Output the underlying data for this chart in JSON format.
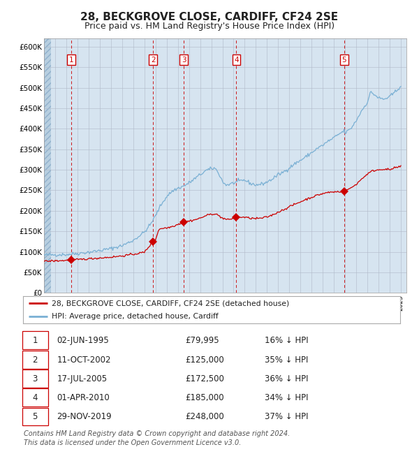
{
  "title": "28, BECKGROVE CLOSE, CARDIFF, CF24 2SE",
  "subtitle": "Price paid vs. HM Land Registry's House Price Index (HPI)",
  "title_fontsize": 11,
  "subtitle_fontsize": 9,
  "plot_bg_color": "#d6e4f0",
  "ylim": [
    0,
    620000
  ],
  "yticks": [
    0,
    50000,
    100000,
    150000,
    200000,
    250000,
    300000,
    350000,
    400000,
    450000,
    500000,
    550000,
    600000
  ],
  "ytick_labels": [
    "£0",
    "£50K",
    "£100K",
    "£150K",
    "£200K",
    "£250K",
    "£300K",
    "£350K",
    "£400K",
    "£450K",
    "£500K",
    "£550K",
    "£600K"
  ],
  "xlim_start": 1993.0,
  "xlim_end": 2025.5,
  "hpi_line_color": "#7ab0d4",
  "price_line_color": "#cc0000",
  "marker_color": "#cc0000",
  "dashed_line_color": "#cc0000",
  "sale_events": [
    {
      "num": 1,
      "year": 1995.42,
      "price": 79995,
      "date": "02-JUN-1995",
      "price_str": "£79,995",
      "pct": "16% ↓ HPI"
    },
    {
      "num": 2,
      "year": 2002.78,
      "price": 125000,
      "date": "11-OCT-2002",
      "price_str": "£125,000",
      "pct": "35% ↓ HPI"
    },
    {
      "num": 3,
      "year": 2005.54,
      "price": 172500,
      "date": "17-JUL-2005",
      "price_str": "£172,500",
      "pct": "36% ↓ HPI"
    },
    {
      "num": 4,
      "year": 2010.25,
      "price": 185000,
      "date": "01-APR-2010",
      "price_str": "£185,000",
      "pct": "34% ↓ HPI"
    },
    {
      "num": 5,
      "year": 2019.92,
      "price": 248000,
      "date": "29-NOV-2019",
      "price_str": "£248,000",
      "pct": "37% ↓ HPI"
    }
  ],
  "legend_label_red": "28, BECKGROVE CLOSE, CARDIFF, CF24 2SE (detached house)",
  "legend_label_blue": "HPI: Average price, detached house, Cardiff",
  "footer": "Contains HM Land Registry data © Crown copyright and database right 2024.\nThis data is licensed under the Open Government Licence v3.0.",
  "footer_fontsize": 7,
  "hpi_anchors": [
    [
      1993.0,
      92000
    ],
    [
      1994.0,
      93000
    ],
    [
      1995.0,
      93500
    ],
    [
      1996.0,
      96000
    ],
    [
      1997.0,
      99000
    ],
    [
      1998.0,
      103000
    ],
    [
      1999.0,
      108000
    ],
    [
      2000.0,
      115000
    ],
    [
      2001.0,
      128000
    ],
    [
      2002.0,
      148000
    ],
    [
      2002.5,
      165000
    ],
    [
      2003.0,
      188000
    ],
    [
      2003.5,
      215000
    ],
    [
      2004.0,
      235000
    ],
    [
      2004.5,
      248000
    ],
    [
      2005.0,
      255000
    ],
    [
      2005.5,
      260000
    ],
    [
      2006.0,
      268000
    ],
    [
      2006.5,
      278000
    ],
    [
      2007.0,
      288000
    ],
    [
      2007.5,
      298000
    ],
    [
      2008.0,
      302000
    ],
    [
      2008.3,
      305000
    ],
    [
      2008.7,
      290000
    ],
    [
      2009.0,
      272000
    ],
    [
      2009.3,
      263000
    ],
    [
      2009.7,
      265000
    ],
    [
      2010.0,
      268000
    ],
    [
      2010.5,
      272000
    ],
    [
      2011.0,
      275000
    ],
    [
      2011.5,
      267000
    ],
    [
      2012.0,
      263000
    ],
    [
      2012.5,
      265000
    ],
    [
      2013.0,
      270000
    ],
    [
      2013.5,
      278000
    ],
    [
      2014.0,
      288000
    ],
    [
      2014.5,
      295000
    ],
    [
      2015.0,
      305000
    ],
    [
      2015.5,
      315000
    ],
    [
      2016.0,
      323000
    ],
    [
      2016.5,
      332000
    ],
    [
      2017.0,
      342000
    ],
    [
      2017.5,
      352000
    ],
    [
      2018.0,
      360000
    ],
    [
      2018.5,
      370000
    ],
    [
      2019.0,
      378000
    ],
    [
      2019.5,
      388000
    ],
    [
      2019.92,
      395000
    ],
    [
      2020.0,
      390000
    ],
    [
      2020.5,
      400000
    ],
    [
      2021.0,
      420000
    ],
    [
      2021.5,
      445000
    ],
    [
      2022.0,
      465000
    ],
    [
      2022.3,
      490000
    ],
    [
      2022.7,
      482000
    ],
    [
      2023.0,
      475000
    ],
    [
      2023.5,
      472000
    ],
    [
      2024.0,
      478000
    ],
    [
      2024.5,
      490000
    ],
    [
      2025.0,
      505000
    ]
  ],
  "price_anchors": [
    [
      1993.0,
      77000
    ],
    [
      1994.0,
      78000
    ],
    [
      1995.0,
      79000
    ],
    [
      1995.42,
      79995
    ],
    [
      1996.0,
      81000
    ],
    [
      1997.0,
      83000
    ],
    [
      1998.0,
      85000
    ],
    [
      1999.0,
      87000
    ],
    [
      2000.0,
      90000
    ],
    [
      2001.0,
      94000
    ],
    [
      2002.0,
      99000
    ],
    [
      2002.78,
      125000
    ],
    [
      2003.0,
      130000
    ],
    [
      2003.3,
      155000
    ],
    [
      2003.7,
      158000
    ],
    [
      2004.0,
      158000
    ],
    [
      2004.5,
      162000
    ],
    [
      2005.0,
      167000
    ],
    [
      2005.54,
      172500
    ],
    [
      2006.0,
      175000
    ],
    [
      2006.5,
      178000
    ],
    [
      2007.0,
      182000
    ],
    [
      2007.5,
      188000
    ],
    [
      2008.0,
      192000
    ],
    [
      2008.3,
      193000
    ],
    [
      2008.7,
      188000
    ],
    [
      2009.0,
      182000
    ],
    [
      2009.5,
      178000
    ],
    [
      2010.0,
      182000
    ],
    [
      2010.25,
      185000
    ],
    [
      2010.5,
      185000
    ],
    [
      2011.0,
      184000
    ],
    [
      2011.5,
      182000
    ],
    [
      2012.0,
      181000
    ],
    [
      2012.5,
      182000
    ],
    [
      2013.0,
      185000
    ],
    [
      2013.5,
      190000
    ],
    [
      2014.0,
      197000
    ],
    [
      2014.5,
      203000
    ],
    [
      2015.0,
      210000
    ],
    [
      2015.5,
      216000
    ],
    [
      2016.0,
      222000
    ],
    [
      2016.5,
      228000
    ],
    [
      2017.0,
      233000
    ],
    [
      2017.5,
      238000
    ],
    [
      2018.0,
      242000
    ],
    [
      2018.5,
      245000
    ],
    [
      2019.0,
      246000
    ],
    [
      2019.5,
      247000
    ],
    [
      2019.92,
      248000
    ],
    [
      2020.0,
      250000
    ],
    [
      2020.5,
      255000
    ],
    [
      2021.0,
      265000
    ],
    [
      2021.5,
      278000
    ],
    [
      2022.0,
      290000
    ],
    [
      2022.5,
      298000
    ],
    [
      2023.0,
      300000
    ],
    [
      2023.5,
      302000
    ],
    [
      2024.0,
      300000
    ],
    [
      2024.5,
      305000
    ],
    [
      2025.0,
      308000
    ]
  ]
}
